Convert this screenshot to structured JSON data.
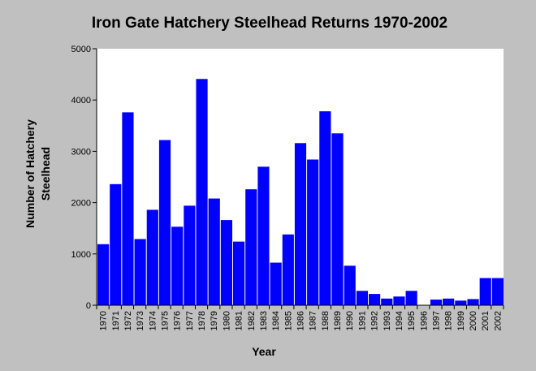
{
  "chart_data": {
    "type": "bar",
    "title": "Iron Gate Hatchery Steelhead Returns 1970-2002",
    "xlabel": "Year",
    "ylabel_lines": [
      "Number of Hatchery",
      "Steelhead"
    ],
    "ylim": [
      0,
      5000
    ],
    "yticks": [
      0,
      1000,
      2000,
      3000,
      4000,
      5000
    ],
    "grid": false,
    "legend": "none",
    "bar_color": "#0000ff",
    "plot_background": "#ffffff",
    "categories": [
      "1970",
      "1971",
      "1972",
      "1973",
      "1974",
      "1975",
      "1976",
      "1977",
      "1978",
      "1979",
      "1980",
      "1981",
      "1982",
      "1983",
      "1984",
      "1985",
      "1986",
      "1987",
      "1988",
      "1989",
      "1990",
      "1991",
      "1992",
      "1993",
      "1994",
      "1995",
      "1996",
      "1997",
      "1998",
      "1999",
      "2000",
      "2001",
      "2002"
    ],
    "values": [
      1190,
      2360,
      3760,
      1290,
      1860,
      3220,
      1530,
      1940,
      4410,
      2080,
      1660,
      1240,
      2260,
      2700,
      830,
      1380,
      3160,
      2840,
      3780,
      3350,
      770,
      280,
      220,
      130,
      170,
      280,
      0,
      110,
      130,
      90,
      120,
      530,
      530
    ]
  }
}
